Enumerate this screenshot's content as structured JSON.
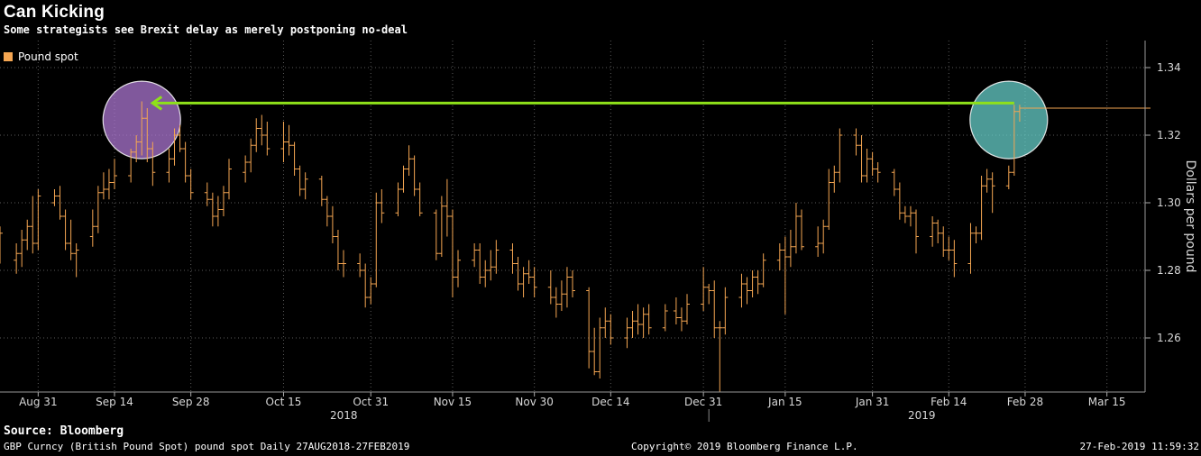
{
  "header": {
    "title": "Can Kicking",
    "subtitle": "Some strategists see Brexit delay as merely postponing no-deal"
  },
  "footer": {
    "source": "Source: Bloomberg",
    "left": "GBP Curncy (British Pound Spot) pound spot  Daily 27AUG2018-27FEB2019",
    "middle": "Copyright© 2019 Bloomberg Finance L.P.",
    "right": "27-Feb-2019 11:59:32"
  },
  "colors": {
    "background": "#000000",
    "bars": "#f5a652",
    "grid": "#5a5a5a",
    "arrow": "#8ee01a",
    "circle_left": "#b27ad8",
    "circle_right": "#69d6d0"
  },
  "chart_data": {
    "type": "ohlc-bar",
    "ylabel": "Dollars per pound",
    "legend": [
      {
        "name": "Pound spot",
        "color": "#f5a652",
        "placement": "top-left"
      }
    ],
    "ylim": [
      1.244,
      1.348
    ],
    "yticks": [
      1.26,
      1.28,
      1.3,
      1.32,
      1.34
    ],
    "ytick_labels": [
      "1.26",
      "1.28",
      "1.30",
      "1.32",
      "1.34"
    ],
    "xrange": [
      "2018-08-24",
      "2019-03-22"
    ],
    "xticks": [
      {
        "date": "2018-08-31",
        "label": "Aug 31"
      },
      {
        "date": "2018-09-14",
        "label": "Sep 14"
      },
      {
        "date": "2018-09-28",
        "label": "Sep 28"
      },
      {
        "date": "2018-10-15",
        "label": "Oct 15"
      },
      {
        "date": "2018-10-31",
        "label": "Oct 31"
      },
      {
        "date": "2018-11-15",
        "label": "Nov 15"
      },
      {
        "date": "2018-11-30",
        "label": "Nov 30"
      },
      {
        "date": "2018-12-14",
        "label": "Dec 14"
      },
      {
        "date": "2018-12-31",
        "label": "Dec 31"
      },
      {
        "date": "2019-01-15",
        "label": "Jan 15"
      },
      {
        "date": "2019-01-31",
        "label": "Jan 31"
      },
      {
        "date": "2019-02-14",
        "label": "Feb 14"
      },
      {
        "date": "2019-02-28",
        "label": "Feb 28"
      },
      {
        "date": "2019-03-15",
        "label": "Mar 15"
      }
    ],
    "year_labels": [
      {
        "date": "2018-10-31",
        "label": "2018"
      },
      {
        "date": "2019-02-14",
        "label": "2019"
      }
    ],
    "year_divider": "2019-01-01",
    "last_value": 1.328,
    "grid": true,
    "annotations": {
      "arrow": {
        "from": {
          "date": "2019-02-26",
          "value": 1.3295
        },
        "to": {
          "date": "2018-09-19",
          "value": 1.3295
        }
      },
      "circles": [
        {
          "date": "2018-09-19",
          "value": 1.3245,
          "color": "#b27ad8"
        },
        {
          "date": "2019-02-25",
          "value": 1.3245,
          "color": "#69d6d0"
        }
      ]
    },
    "bars": [
      {
        "date": "2018-08-24",
        "o": 1.285,
        "h": 1.293,
        "l": 1.282,
        "c": 1.291
      },
      {
        "date": "2018-08-27",
        "o": 1.283,
        "h": 1.288,
        "l": 1.279,
        "c": 1.285
      },
      {
        "date": "2018-08-28",
        "o": 1.285,
        "h": 1.292,
        "l": 1.281,
        "c": 1.289
      },
      {
        "date": "2018-08-29",
        "o": 1.289,
        "h": 1.295,
        "l": 1.286,
        "c": 1.293
      },
      {
        "date": "2018-08-30",
        "o": 1.293,
        "h": 1.302,
        "l": 1.285,
        "c": 1.288
      },
      {
        "date": "2018-08-31",
        "o": 1.288,
        "h": 1.304,
        "l": 1.286,
        "c": 1.302
      },
      {
        "date": "2018-09-03",
        "o": 1.3,
        "h": 1.304,
        "l": 1.299,
        "c": 1.302
      },
      {
        "date": "2018-09-04",
        "o": 1.302,
        "h": 1.305,
        "l": 1.295,
        "c": 1.296
      },
      {
        "date": "2018-09-05",
        "o": 1.296,
        "h": 1.298,
        "l": 1.286,
        "c": 1.288
      },
      {
        "date": "2018-09-06",
        "o": 1.288,
        "h": 1.295,
        "l": 1.283,
        "c": 1.285
      },
      {
        "date": "2018-09-07",
        "o": 1.285,
        "h": 1.288,
        "l": 1.278,
        "c": 1.286
      },
      {
        "date": "2018-09-10",
        "o": 1.29,
        "h": 1.298,
        "l": 1.287,
        "c": 1.293
      },
      {
        "date": "2018-09-11",
        "o": 1.293,
        "h": 1.305,
        "l": 1.291,
        "c": 1.303
      },
      {
        "date": "2018-09-12",
        "o": 1.303,
        "h": 1.309,
        "l": 1.301,
        "c": 1.304
      },
      {
        "date": "2018-09-13",
        "o": 1.304,
        "h": 1.31,
        "l": 1.301,
        "c": 1.306
      },
      {
        "date": "2018-09-14",
        "o": 1.306,
        "h": 1.313,
        "l": 1.304,
        "c": 1.308
      },
      {
        "date": "2018-09-17",
        "o": 1.308,
        "h": 1.316,
        "l": 1.306,
        "c": 1.315
      },
      {
        "date": "2018-09-18",
        "o": 1.315,
        "h": 1.32,
        "l": 1.312,
        "c": 1.318
      },
      {
        "date": "2018-09-19",
        "o": 1.318,
        "h": 1.33,
        "l": 1.314,
        "c": 1.325
      },
      {
        "date": "2018-09-20",
        "o": 1.325,
        "h": 1.328,
        "l": 1.312,
        "c": 1.316
      },
      {
        "date": "2018-09-21",
        "o": 1.316,
        "h": 1.318,
        "l": 1.305,
        "c": 1.309
      },
      {
        "date": "2018-09-24",
        "o": 1.309,
        "h": 1.316,
        "l": 1.306,
        "c": 1.313
      },
      {
        "date": "2018-09-25",
        "o": 1.313,
        "h": 1.322,
        "l": 1.311,
        "c": 1.32
      },
      {
        "date": "2018-09-26",
        "o": 1.32,
        "h": 1.323,
        "l": 1.315,
        "c": 1.316
      },
      {
        "date": "2018-09-27",
        "o": 1.316,
        "h": 1.318,
        "l": 1.306,
        "c": 1.308
      },
      {
        "date": "2018-09-28",
        "o": 1.308,
        "h": 1.31,
        "l": 1.301,
        "c": 1.303
      },
      {
        "date": "2018-10-01",
        "o": 1.303,
        "h": 1.306,
        "l": 1.299,
        "c": 1.301
      },
      {
        "date": "2018-10-02",
        "o": 1.301,
        "h": 1.303,
        "l": 1.293,
        "c": 1.296
      },
      {
        "date": "2018-10-03",
        "o": 1.296,
        "h": 1.302,
        "l": 1.293,
        "c": 1.298
      },
      {
        "date": "2018-10-04",
        "o": 1.298,
        "h": 1.305,
        "l": 1.296,
        "c": 1.303
      },
      {
        "date": "2018-10-05",
        "o": 1.303,
        "h": 1.313,
        "l": 1.301,
        "c": 1.31
      },
      {
        "date": "2018-10-08",
        "o": 1.309,
        "h": 1.314,
        "l": 1.306,
        "c": 1.312
      },
      {
        "date": "2018-10-09",
        "o": 1.312,
        "h": 1.319,
        "l": 1.309,
        "c": 1.317
      },
      {
        "date": "2018-10-10",
        "o": 1.317,
        "h": 1.325,
        "l": 1.315,
        "c": 1.322
      },
      {
        "date": "2018-10-11",
        "o": 1.322,
        "h": 1.326,
        "l": 1.317,
        "c": 1.32
      },
      {
        "date": "2018-10-12",
        "o": 1.32,
        "h": 1.324,
        "l": 1.314,
        "c": 1.316
      },
      {
        "date": "2018-10-15",
        "o": 1.316,
        "h": 1.324,
        "l": 1.312,
        "c": 1.318
      },
      {
        "date": "2018-10-16",
        "o": 1.318,
        "h": 1.323,
        "l": 1.314,
        "c": 1.317
      },
      {
        "date": "2018-10-17",
        "o": 1.317,
        "h": 1.318,
        "l": 1.308,
        "c": 1.31
      },
      {
        "date": "2018-10-18",
        "o": 1.31,
        "h": 1.311,
        "l": 1.302,
        "c": 1.304
      },
      {
        "date": "2018-10-19",
        "o": 1.304,
        "h": 1.309,
        "l": 1.301,
        "c": 1.307
      },
      {
        "date": "2018-10-22",
        "o": 1.307,
        "h": 1.308,
        "l": 1.299,
        "c": 1.301
      },
      {
        "date": "2018-10-23",
        "o": 1.301,
        "h": 1.302,
        "l": 1.293,
        "c": 1.296
      },
      {
        "date": "2018-10-24",
        "o": 1.296,
        "h": 1.299,
        "l": 1.288,
        "c": 1.29
      },
      {
        "date": "2018-10-25",
        "o": 1.29,
        "h": 1.292,
        "l": 1.28,
        "c": 1.282
      },
      {
        "date": "2018-10-26",
        "o": 1.282,
        "h": 1.286,
        "l": 1.278,
        "c": 1.282
      },
      {
        "date": "2018-10-29",
        "o": 1.282,
        "h": 1.285,
        "l": 1.278,
        "c": 1.28
      },
      {
        "date": "2018-10-30",
        "o": 1.28,
        "h": 1.282,
        "l": 1.269,
        "c": 1.272
      },
      {
        "date": "2018-10-31",
        "o": 1.272,
        "h": 1.278,
        "l": 1.27,
        "c": 1.276
      },
      {
        "date": "2018-11-01",
        "o": 1.276,
        "h": 1.303,
        "l": 1.275,
        "c": 1.3
      },
      {
        "date": "2018-11-02",
        "o": 1.3,
        "h": 1.304,
        "l": 1.294,
        "c": 1.297
      },
      {
        "date": "2018-11-05",
        "o": 1.297,
        "h": 1.306,
        "l": 1.296,
        "c": 1.304
      },
      {
        "date": "2018-11-06",
        "o": 1.304,
        "h": 1.311,
        "l": 1.303,
        "c": 1.31
      },
      {
        "date": "2018-11-07",
        "o": 1.31,
        "h": 1.317,
        "l": 1.308,
        "c": 1.313
      },
      {
        "date": "2018-11-08",
        "o": 1.313,
        "h": 1.314,
        "l": 1.302,
        "c": 1.304
      },
      {
        "date": "2018-11-09",
        "o": 1.304,
        "h": 1.306,
        "l": 1.296,
        "c": 1.297
      },
      {
        "date": "2018-11-12",
        "o": 1.297,
        "h": 1.298,
        "l": 1.283,
        "c": 1.285
      },
      {
        "date": "2018-11-13",
        "o": 1.285,
        "h": 1.302,
        "l": 1.284,
        "c": 1.299
      },
      {
        "date": "2018-11-14",
        "o": 1.299,
        "h": 1.307,
        "l": 1.29,
        "c": 1.296
      },
      {
        "date": "2018-11-15",
        "o": 1.296,
        "h": 1.298,
        "l": 1.272,
        "c": 1.278
      },
      {
        "date": "2018-11-16",
        "o": 1.278,
        "h": 1.286,
        "l": 1.275,
        "c": 1.283
      },
      {
        "date": "2018-11-19",
        "o": 1.283,
        "h": 1.288,
        "l": 1.281,
        "c": 1.286
      },
      {
        "date": "2018-11-20",
        "o": 1.286,
        "h": 1.288,
        "l": 1.276,
        "c": 1.278
      },
      {
        "date": "2018-11-21",
        "o": 1.278,
        "h": 1.283,
        "l": 1.275,
        "c": 1.28
      },
      {
        "date": "2018-11-22",
        "o": 1.28,
        "h": 1.286,
        "l": 1.277,
        "c": 1.281
      },
      {
        "date": "2018-11-23",
        "o": 1.281,
        "h": 1.289,
        "l": 1.279,
        "c": 1.286
      },
      {
        "date": "2018-11-26",
        "o": 1.286,
        "h": 1.288,
        "l": 1.279,
        "c": 1.282
      },
      {
        "date": "2018-11-27",
        "o": 1.282,
        "h": 1.284,
        "l": 1.274,
        "c": 1.276
      },
      {
        "date": "2018-11-28",
        "o": 1.276,
        "h": 1.281,
        "l": 1.272,
        "c": 1.279
      },
      {
        "date": "2018-11-29",
        "o": 1.279,
        "h": 1.283,
        "l": 1.276,
        "c": 1.278
      },
      {
        "date": "2018-11-30",
        "o": 1.278,
        "h": 1.281,
        "l": 1.272,
        "c": 1.275
      },
      {
        "date": "2018-12-03",
        "o": 1.275,
        "h": 1.28,
        "l": 1.27,
        "c": 1.272
      },
      {
        "date": "2018-12-04",
        "o": 1.272,
        "h": 1.275,
        "l": 1.266,
        "c": 1.27
      },
      {
        "date": "2018-12-05",
        "o": 1.27,
        "h": 1.277,
        "l": 1.268,
        "c": 1.273
      },
      {
        "date": "2018-12-06",
        "o": 1.273,
        "h": 1.281,
        "l": 1.269,
        "c": 1.278
      },
      {
        "date": "2018-12-07",
        "o": 1.278,
        "h": 1.28,
        "l": 1.272,
        "c": 1.274
      },
      {
        "date": "2018-12-10",
        "o": 1.274,
        "h": 1.275,
        "l": 1.251,
        "c": 1.256
      },
      {
        "date": "2018-12-11",
        "o": 1.256,
        "h": 1.263,
        "l": 1.249,
        "c": 1.25
      },
      {
        "date": "2018-12-12",
        "o": 1.25,
        "h": 1.266,
        "l": 1.248,
        "c": 1.263
      },
      {
        "date": "2018-12-13",
        "o": 1.263,
        "h": 1.269,
        "l": 1.26,
        "c": 1.265
      },
      {
        "date": "2018-12-14",
        "o": 1.265,
        "h": 1.267,
        "l": 1.258,
        "c": 1.26
      },
      {
        "date": "2018-12-17",
        "o": 1.26,
        "h": 1.266,
        "l": 1.257,
        "c": 1.263
      },
      {
        "date": "2018-12-18",
        "o": 1.263,
        "h": 1.268,
        "l": 1.26,
        "c": 1.265
      },
      {
        "date": "2018-12-19",
        "o": 1.265,
        "h": 1.27,
        "l": 1.261,
        "c": 1.264
      },
      {
        "date": "2018-12-20",
        "o": 1.264,
        "h": 1.269,
        "l": 1.26,
        "c": 1.267
      },
      {
        "date": "2018-12-21",
        "o": 1.267,
        "h": 1.27,
        "l": 1.261,
        "c": 1.263
      },
      {
        "date": "2018-12-24",
        "o": 1.263,
        "h": 1.27,
        "l": 1.262,
        "c": 1.268
      },
      {
        "date": "2018-12-26",
        "o": 1.268,
        "h": 1.272,
        "l": 1.264,
        "c": 1.266
      },
      {
        "date": "2018-12-27",
        "o": 1.266,
        "h": 1.269,
        "l": 1.262,
        "c": 1.265
      },
      {
        "date": "2018-12-28",
        "o": 1.265,
        "h": 1.273,
        "l": 1.264,
        "c": 1.27
      },
      {
        "date": "2018-12-31",
        "o": 1.27,
        "h": 1.281,
        "l": 1.268,
        "c": 1.275
      },
      {
        "date": "2019-01-01",
        "o": 1.275,
        "h": 1.276,
        "l": 1.27,
        "c": 1.274
      },
      {
        "date": "2019-01-02",
        "o": 1.274,
        "h": 1.277,
        "l": 1.26,
        "c": 1.263
      },
      {
        "date": "2019-01-03",
        "o": 1.263,
        "h": 1.265,
        "l": 1.244,
        "c": 1.263
      },
      {
        "date": "2019-01-04",
        "o": 1.263,
        "h": 1.275,
        "l": 1.261,
        "c": 1.272
      },
      {
        "date": "2019-01-07",
        "o": 1.272,
        "h": 1.279,
        "l": 1.269,
        "c": 1.276
      },
      {
        "date": "2019-01-08",
        "o": 1.276,
        "h": 1.278,
        "l": 1.27,
        "c": 1.274
      },
      {
        "date": "2019-01-09",
        "o": 1.274,
        "h": 1.28,
        "l": 1.272,
        "c": 1.278
      },
      {
        "date": "2019-01-10",
        "o": 1.278,
        "h": 1.28,
        "l": 1.273,
        "c": 1.276
      },
      {
        "date": "2019-01-11",
        "o": 1.276,
        "h": 1.285,
        "l": 1.275,
        "c": 1.283
      },
      {
        "date": "2019-01-14",
        "o": 1.283,
        "h": 1.288,
        "l": 1.28,
        "c": 1.286
      },
      {
        "date": "2019-01-15",
        "o": 1.286,
        "h": 1.29,
        "l": 1.267,
        "c": 1.284
      },
      {
        "date": "2019-01-16",
        "o": 1.284,
        "h": 1.292,
        "l": 1.281,
        "c": 1.287
      },
      {
        "date": "2019-01-17",
        "o": 1.287,
        "h": 1.3,
        "l": 1.285,
        "c": 1.296
      },
      {
        "date": "2019-01-18",
        "o": 1.296,
        "h": 1.298,
        "l": 1.286,
        "c": 1.287
      },
      {
        "date": "2019-01-21",
        "o": 1.287,
        "h": 1.293,
        "l": 1.284,
        "c": 1.288
      },
      {
        "date": "2019-01-22",
        "o": 1.288,
        "h": 1.295,
        "l": 1.285,
        "c": 1.293
      },
      {
        "date": "2019-01-23",
        "o": 1.293,
        "h": 1.31,
        "l": 1.292,
        "c": 1.306
      },
      {
        "date": "2019-01-24",
        "o": 1.306,
        "h": 1.311,
        "l": 1.303,
        "c": 1.309
      },
      {
        "date": "2019-01-25",
        "o": 1.309,
        "h": 1.322,
        "l": 1.306,
        "c": 1.32
      },
      {
        "date": "2019-01-28",
        "o": 1.32,
        "h": 1.322,
        "l": 1.314,
        "c": 1.317
      },
      {
        "date": "2019-01-29",
        "o": 1.317,
        "h": 1.32,
        "l": 1.306,
        "c": 1.308
      },
      {
        "date": "2019-01-30",
        "o": 1.308,
        "h": 1.316,
        "l": 1.306,
        "c": 1.313
      },
      {
        "date": "2019-01-31",
        "o": 1.313,
        "h": 1.315,
        "l": 1.308,
        "c": 1.31
      },
      {
        "date": "2019-02-01",
        "o": 1.31,
        "h": 1.312,
        "l": 1.306,
        "c": 1.309
      },
      {
        "date": "2019-02-04",
        "o": 1.309,
        "h": 1.31,
        "l": 1.302,
        "c": 1.304
      },
      {
        "date": "2019-02-05",
        "o": 1.304,
        "h": 1.306,
        "l": 1.295,
        "c": 1.297
      },
      {
        "date": "2019-02-06",
        "o": 1.297,
        "h": 1.299,
        "l": 1.294,
        "c": 1.296
      },
      {
        "date": "2019-02-07",
        "o": 1.296,
        "h": 1.299,
        "l": 1.293,
        "c": 1.297
      },
      {
        "date": "2019-02-08",
        "o": 1.297,
        "h": 1.298,
        "l": 1.285,
        "c": 1.29
      },
      {
        "date": "2019-02-11",
        "o": 1.29,
        "h": 1.296,
        "l": 1.287,
        "c": 1.294
      },
      {
        "date": "2019-02-12",
        "o": 1.294,
        "h": 1.295,
        "l": 1.288,
        "c": 1.291
      },
      {
        "date": "2019-02-13",
        "o": 1.291,
        "h": 1.293,
        "l": 1.284,
        "c": 1.286
      },
      {
        "date": "2019-02-14",
        "o": 1.286,
        "h": 1.29,
        "l": 1.283,
        "c": 1.286
      },
      {
        "date": "2019-02-15",
        "o": 1.286,
        "h": 1.289,
        "l": 1.278,
        "c": 1.282
      },
      {
        "date": "2019-02-18",
        "o": 1.282,
        "h": 1.294,
        "l": 1.279,
        "c": 1.291
      },
      {
        "date": "2019-02-19",
        "o": 1.291,
        "h": 1.293,
        "l": 1.288,
        "c": 1.291
      },
      {
        "date": "2019-02-20",
        "o": 1.291,
        "h": 1.308,
        "l": 1.289,
        "c": 1.305
      },
      {
        "date": "2019-02-21",
        "o": 1.305,
        "h": 1.31,
        "l": 1.303,
        "c": 1.307
      },
      {
        "date": "2019-02-22",
        "o": 1.307,
        "h": 1.309,
        "l": 1.297,
        "c": 1.305
      },
      {
        "date": "2019-02-25",
        "o": 1.305,
        "h": 1.311,
        "l": 1.304,
        "c": 1.309
      },
      {
        "date": "2019-02-26",
        "o": 1.309,
        "h": 1.329,
        "l": 1.308,
        "c": 1.327
      },
      {
        "date": "2019-02-27",
        "o": 1.327,
        "h": 1.329,
        "l": 1.324,
        "c": 1.328
      }
    ]
  }
}
